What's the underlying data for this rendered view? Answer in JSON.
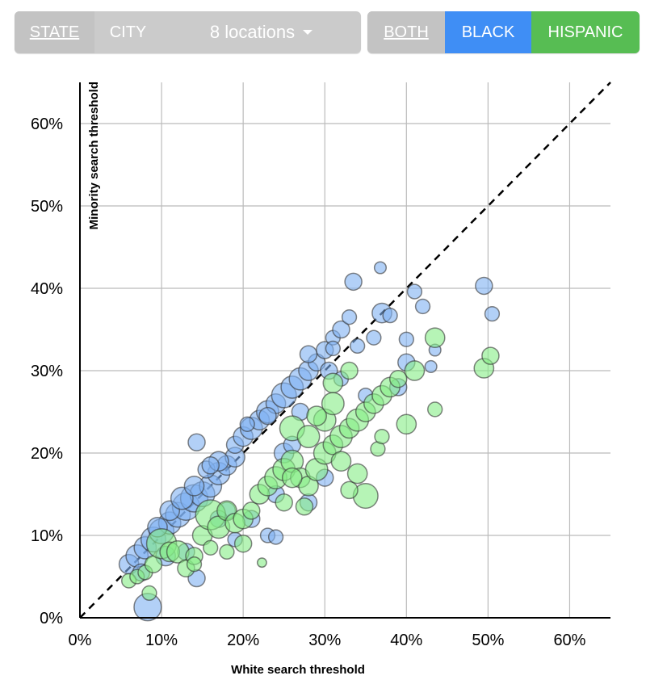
{
  "toolbar": {
    "geo_buttons": [
      {
        "label": "STATE",
        "selected": true
      },
      {
        "label": "CITY",
        "selected": false
      }
    ],
    "locations_dropdown": {
      "label": "8 locations",
      "icon": "caret-down-icon"
    },
    "race_buttons": [
      {
        "label": "BOTH",
        "selected": true,
        "color": "#cbcbcb"
      },
      {
        "label": "BLACK",
        "selected": false,
        "color": "#3f8ef5"
      },
      {
        "label": "HISPANIC",
        "selected": false,
        "color": "#57bd53"
      }
    ]
  },
  "chart_data": {
    "type": "scatter",
    "title": "",
    "xlabel": "White search threshold",
    "ylabel": "Minority search threshold",
    "xlim": [
      0,
      65
    ],
    "ylim": [
      0,
      65
    ],
    "xticks": [
      "0%",
      "10%",
      "20%",
      "30%",
      "40%",
      "50%",
      "60%"
    ],
    "yticks": [
      "0%",
      "10%",
      "20%",
      "30%",
      "40%",
      "50%",
      "60%"
    ],
    "grid": true,
    "reference_line": "y = x (dashed)",
    "series": [
      {
        "name": "Black",
        "color": "#7fb0f2",
        "points": [
          [
            8.3,
            1.3,
            9
          ],
          [
            14.3,
            4.8,
            5
          ],
          [
            6,
            6.5,
            6
          ],
          [
            7,
            7.5,
            7
          ],
          [
            8,
            8.5,
            7
          ],
          [
            9,
            9.5,
            8
          ],
          [
            10,
            10.5,
            8
          ],
          [
            11,
            11.5,
            7
          ],
          [
            12,
            12.5,
            8
          ],
          [
            13,
            13.5,
            9
          ],
          [
            14,
            14.5,
            9
          ],
          [
            15,
            15,
            8
          ],
          [
            16,
            16,
            7
          ],
          [
            17,
            17.5,
            7
          ],
          [
            18,
            18.5,
            6
          ],
          [
            19,
            19.5,
            6
          ],
          [
            9.5,
            11,
            6
          ],
          [
            11,
            13,
            6
          ],
          [
            12.5,
            14.5,
            7
          ],
          [
            14,
            16,
            6
          ],
          [
            15.5,
            18,
            5
          ],
          [
            17,
            19,
            6
          ],
          [
            19,
            21,
            5
          ],
          [
            20,
            22,
            6
          ],
          [
            21,
            23,
            7
          ],
          [
            22,
            24,
            6
          ],
          [
            23,
            25,
            7
          ],
          [
            24,
            26,
            6
          ],
          [
            25,
            27,
            8
          ],
          [
            26,
            28,
            7
          ],
          [
            27,
            29,
            7
          ],
          [
            28,
            30,
            6
          ],
          [
            29,
            31,
            5
          ],
          [
            30,
            32.5,
            5
          ],
          [
            31,
            34,
            4
          ],
          [
            32,
            35,
            5
          ],
          [
            33,
            36.5,
            4
          ],
          [
            33.5,
            40.8,
            5
          ],
          [
            36.8,
            42.5,
            3
          ],
          [
            37,
            37,
            6
          ],
          [
            38,
            36.7,
            4
          ],
          [
            41,
            39.6,
            4
          ],
          [
            42,
            37.8,
            4
          ],
          [
            49.5,
            40.3,
            5
          ],
          [
            50.5,
            36.9,
            4
          ],
          [
            40,
            33.8,
            4
          ],
          [
            40,
            31,
            5
          ],
          [
            43.5,
            32.5,
            3
          ],
          [
            14.3,
            21.3,
            5
          ],
          [
            16,
            18.5,
            5
          ],
          [
            18,
            13,
            5
          ],
          [
            23,
            10,
            4
          ],
          [
            24,
            9.8,
            4
          ],
          [
            28,
            14,
            5
          ],
          [
            30,
            17,
            5
          ],
          [
            25,
            20,
            6
          ],
          [
            27,
            25,
            5
          ],
          [
            35,
            27,
            4
          ],
          [
            39,
            28,
            5
          ],
          [
            43,
            30.5,
            3
          ],
          [
            19,
            9.5,
            4
          ],
          [
            21,
            12,
            5
          ],
          [
            24,
            15,
            5
          ],
          [
            26,
            21,
            5
          ],
          [
            20.5,
            23.5,
            4
          ],
          [
            23,
            24.5,
            5
          ],
          [
            36,
            34,
            4
          ],
          [
            34,
            33,
            4
          ],
          [
            31,
            32.7,
            4
          ],
          [
            28,
            32,
            5
          ],
          [
            30.5,
            30,
            5
          ],
          [
            32,
            29,
            4
          ],
          [
            7.5,
            5.5,
            5
          ],
          [
            10.5,
            7.5,
            6
          ],
          [
            13,
            8,
            5
          ],
          [
            17,
            12,
            5
          ]
        ]
      },
      {
        "name": "Hispanic",
        "color": "#86ec86",
        "points": [
          [
            8.5,
            3,
            4
          ],
          [
            6,
            4.5,
            4
          ],
          [
            7,
            5,
            4
          ],
          [
            8,
            5.5,
            4
          ],
          [
            9,
            6.5,
            5
          ],
          [
            10,
            9,
            10
          ],
          [
            11,
            8,
            6
          ],
          [
            12,
            8,
            7
          ],
          [
            13,
            6,
            5
          ],
          [
            14,
            7.5,
            5
          ],
          [
            15,
            10,
            6
          ],
          [
            16,
            12.5,
            10
          ],
          [
            17,
            11,
            7
          ],
          [
            18,
            13,
            6
          ],
          [
            19,
            11.5,
            6
          ],
          [
            20,
            12,
            6
          ],
          [
            21,
            13,
            5
          ],
          [
            22,
            15,
            6
          ],
          [
            23,
            16,
            6
          ],
          [
            24,
            17,
            7
          ],
          [
            25,
            18,
            7
          ],
          [
            26,
            19,
            7
          ],
          [
            27,
            17,
            6
          ],
          [
            28,
            16,
            6
          ],
          [
            29,
            18,
            7
          ],
          [
            30,
            20,
            7
          ],
          [
            31,
            21,
            6
          ],
          [
            32,
            22,
            7
          ],
          [
            33,
            23,
            6
          ],
          [
            34,
            24,
            7
          ],
          [
            35,
            25,
            6
          ],
          [
            36,
            26,
            6
          ],
          [
            37,
            27,
            6
          ],
          [
            38,
            28,
            6
          ],
          [
            39,
            29,
            5
          ],
          [
            40,
            23.5,
            6
          ],
          [
            41,
            30,
            6
          ],
          [
            43.5,
            34,
            6
          ],
          [
            49.5,
            30.3,
            6
          ],
          [
            50.3,
            31.8,
            5
          ],
          [
            43.5,
            25.3,
            4
          ],
          [
            35,
            14.8,
            8
          ],
          [
            33,
            15.5,
            5
          ],
          [
            34,
            17.5,
            6
          ],
          [
            22.3,
            6.7,
            2
          ],
          [
            27.5,
            13.5,
            5
          ],
          [
            30,
            24,
            7
          ],
          [
            31,
            28.5,
            6
          ],
          [
            33,
            30,
            5
          ],
          [
            36.5,
            20.5,
            4
          ],
          [
            37,
            22,
            4
          ],
          [
            26,
            23,
            8
          ],
          [
            28,
            22,
            7
          ],
          [
            25,
            14,
            5
          ],
          [
            20,
            9,
            5
          ],
          [
            18,
            8,
            4
          ],
          [
            16,
            8.5,
            4
          ],
          [
            14,
            6.5,
            4
          ],
          [
            29,
            24.5,
            6
          ],
          [
            31,
            26,
            7
          ],
          [
            32,
            19,
            6
          ],
          [
            26,
            17,
            6
          ]
        ]
      }
    ]
  }
}
